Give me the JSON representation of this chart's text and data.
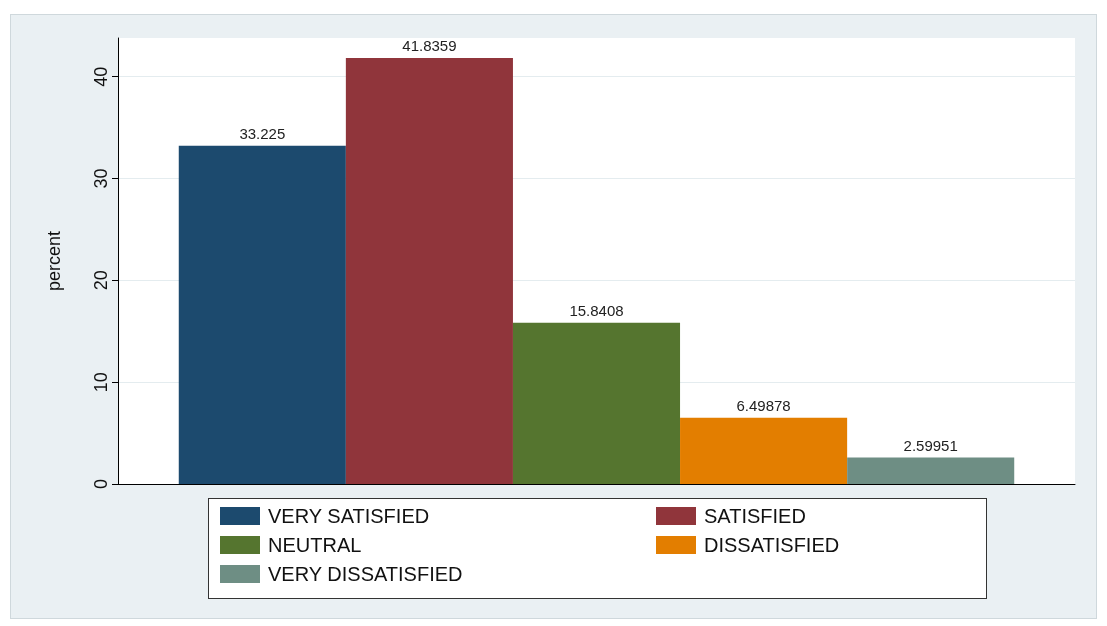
{
  "chart_data": {
    "type": "bar",
    "ylabel": "percent",
    "categories": [
      null
    ],
    "series": [
      {
        "name": "VERY SATISFIED",
        "color": "#1c4a6e",
        "values": [
          33.225
        ]
      },
      {
        "name": "SATISFIED",
        "color": "#90353b",
        "values": [
          41.8359
        ]
      },
      {
        "name": "NEUTRAL",
        "color": "#55752f",
        "values": [
          15.8408
        ]
      },
      {
        "name": "DISSATISFIED",
        "color": "#e37e00",
        "values": [
          6.49878
        ]
      },
      {
        "name": "VERY DISSATISFIED",
        "color": "#6e8e84",
        "values": [
          2.59951
        ]
      }
    ],
    "ylim": [
      0,
      43.8
    ],
    "yticks": [
      0,
      10,
      20,
      30,
      40
    ],
    "grid": "y",
    "legend": "bottom",
    "data_labels": true
  }
}
